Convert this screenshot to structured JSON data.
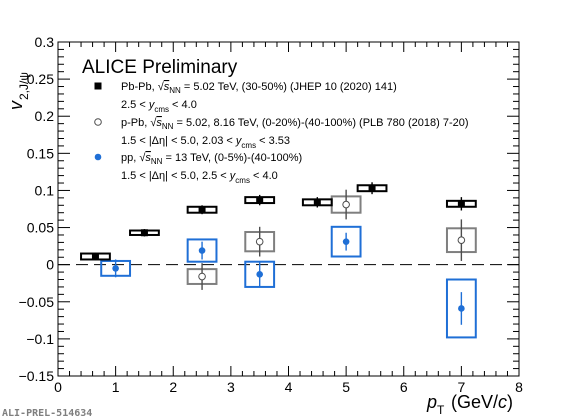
{
  "chart_data": {
    "type": "scatter",
    "title": "ALICE Preliminary",
    "xlabel": "p_T (GeV/c)",
    "ylabel": "v_2,J/ψ",
    "xlim": [
      0,
      8
    ],
    "ylim": [
      -0.15,
      0.3
    ],
    "xticks": [
      "0",
      "1",
      "2",
      "3",
      "4",
      "5",
      "6",
      "7",
      "8"
    ],
    "yticks": [
      "−0.15",
      "−0.1",
      "−0.05",
      "0",
      "0.05",
      "0.1",
      "0.15",
      "0.2",
      "0.25",
      "0.3"
    ],
    "ytick_values": [
      -0.15,
      -0.1,
      -0.05,
      0,
      0.05,
      0.1,
      0.15,
      0.2,
      0.25,
      0.3
    ],
    "zero_line": "dashed",
    "legend_placement": "top-left",
    "series": [
      {
        "name": "Pb-Pb, √sNN = 5.02 TeV, (30-50%) (JHEP 10 (2020) 141)",
        "legend_line1": [
          "Pb-Pb, ",
          "s",
          "NN",
          " = 5.02 TeV, (30-50%) (JHEP 10 (2020) 141)"
        ],
        "legend_line2": [
          "2.5 < ",
          "y",
          "cms",
          " < 4.0"
        ],
        "marker": "filled-square",
        "color": "#000000",
        "syst_color": "#000000",
        "x": [
          0.65,
          1.5,
          2.5,
          3.5,
          4.5,
          5.45,
          7.0
        ],
        "y": [
          0.011,
          0.043,
          0.074,
          0.087,
          0.084,
          0.103,
          0.082
        ],
        "stat_err": [
          0.005,
          0.005,
          0.006,
          0.007,
          0.007,
          0.008,
          0.009
        ],
        "syst_err": [
          0.004,
          0.003,
          0.004,
          0.004,
          0.004,
          0.004,
          0.004
        ],
        "syst_halfwidth": [
          0.25,
          0.25,
          0.25,
          0.25,
          0.25,
          0.25,
          0.25
        ]
      },
      {
        "name": "p-Pb, √sNN = 5.02, 8.16 TeV, (0-20%)-(40-100%) (PLB 780 (2018) 7-20)",
        "legend_line1": [
          "p-Pb, ",
          "s",
          "NN",
          " = 5.02, 8.16 TeV, (0-20%)-(40-100%) (PLB 780 (2018) 7-20)"
        ],
        "legend_line2": [
          "1.5 < |Δη| < 5.0, 2.03 < ",
          "y",
          "cms",
          " < 3.53"
        ],
        "marker": "open-circle",
        "color": "#4d4d4d",
        "syst_color": "#7f7f7f",
        "x": [
          2.5,
          3.5,
          5.0,
          7.0
        ],
        "y": [
          -0.016,
          0.031,
          0.081,
          0.033
        ],
        "stat_err": [
          0.018,
          0.02,
          0.02,
          0.028
        ],
        "syst_err": [
          0.01,
          0.013,
          0.011,
          0.016
        ],
        "syst_halfwidth": [
          0.25,
          0.25,
          0.25,
          0.25
        ]
      },
      {
        "name": "pp, √sNN = 13 TeV, (0-5%)-(40-100%)",
        "legend_line1": [
          "pp, ",
          "s",
          "NN",
          " = 13 TeV, (0-5%)-(40-100%)"
        ],
        "legend_line2": [
          "1.5 < |Δη| < 5.0, 2.5 < ",
          "y",
          "cms",
          " < 4.0"
        ],
        "marker": "filled-circle",
        "color": "#1f6fd6",
        "syst_color": "#1f6fd6",
        "x": [
          1.0,
          2.5,
          3.5,
          5.0,
          7.0
        ],
        "y": [
          -0.005,
          0.019,
          -0.013,
          0.031,
          -0.059
        ],
        "stat_err": [
          0.012,
          0.012,
          0.016,
          0.012,
          0.022
        ],
        "syst_err": [
          0.01,
          0.015,
          0.017,
          0.02,
          0.039
        ],
        "syst_halfwidth": [
          0.25,
          0.25,
          0.25,
          0.25,
          0.25
        ]
      }
    ]
  },
  "preliminary_id": "ALI-PREL-514634"
}
